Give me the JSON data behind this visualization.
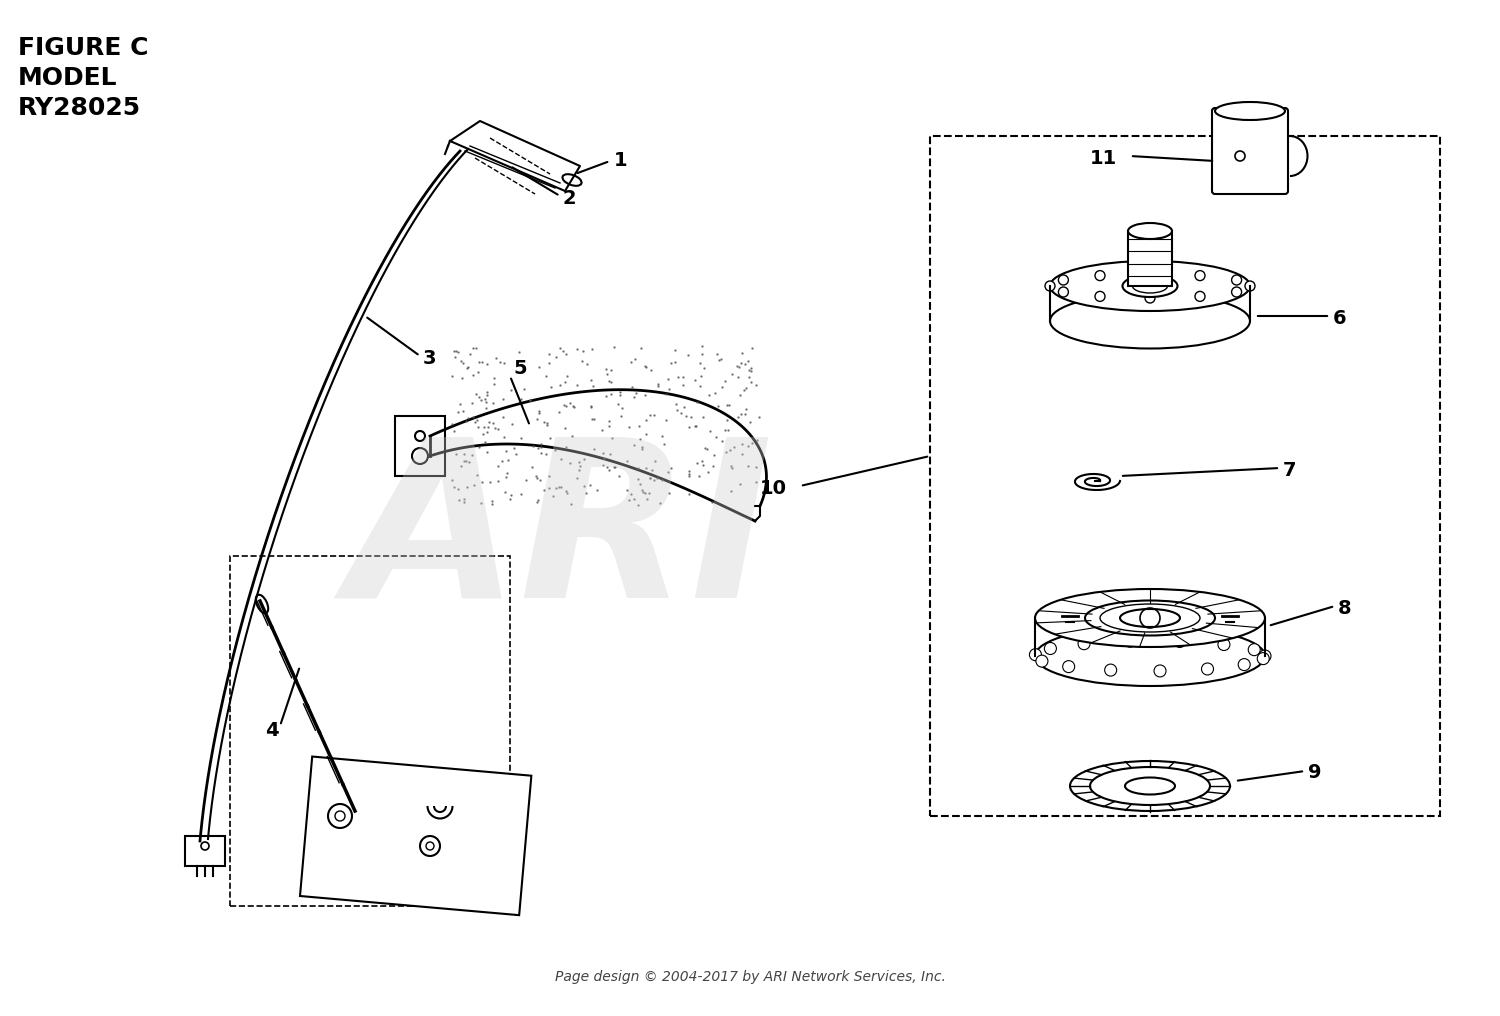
{
  "title_line1": "FIGURE C",
  "title_line2": "MODEL",
  "title_line3": "RY28025",
  "watermark": "ARI",
  "footer": "Page design © 2004-2017 by ARI Network Services, Inc.",
  "bg_color": "#ffffff",
  "line_color": "#000000",
  "watermark_color": "#cccccc",
  "part_labels": [
    "1",
    "2",
    "3",
    "4",
    "5",
    "6",
    "7",
    "8",
    "9",
    "10",
    "11"
  ],
  "title_fontsize": 18,
  "label_fontsize": 14
}
